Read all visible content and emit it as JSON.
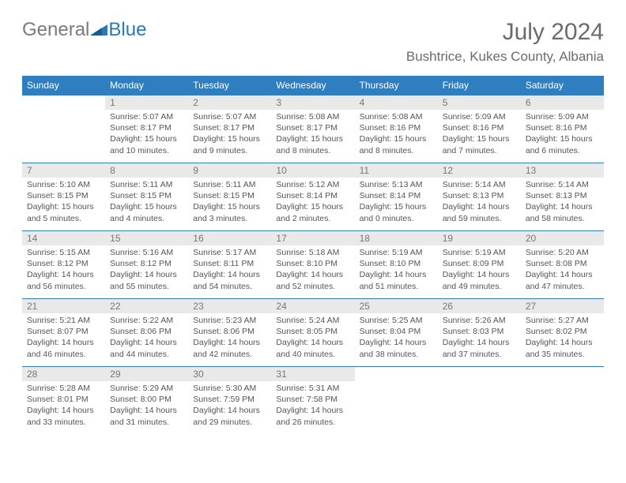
{
  "logo": {
    "part1": "General",
    "part2": "Blue"
  },
  "title": "July 2024",
  "location": "Bushtrice, Kukes County, Albania",
  "colors": {
    "header_bg": "#2f7ec0",
    "header_text": "#ffffff",
    "daynum_bg": "#e9e9e9",
    "cell_border": "#2f7ec0",
    "text": "#555555",
    "logo_gray": "#7a7a7a",
    "logo_blue": "#2878bd"
  },
  "weekdays": [
    "Sunday",
    "Monday",
    "Tuesday",
    "Wednesday",
    "Thursday",
    "Friday",
    "Saturday"
  ],
  "weeks": [
    [
      {
        "day": "",
        "sunrise": "",
        "sunset": "",
        "daylight": ""
      },
      {
        "day": "1",
        "sunrise": "Sunrise: 5:07 AM",
        "sunset": "Sunset: 8:17 PM",
        "daylight": "Daylight: 15 hours and 10 minutes."
      },
      {
        "day": "2",
        "sunrise": "Sunrise: 5:07 AM",
        "sunset": "Sunset: 8:17 PM",
        "daylight": "Daylight: 15 hours and 9 minutes."
      },
      {
        "day": "3",
        "sunrise": "Sunrise: 5:08 AM",
        "sunset": "Sunset: 8:17 PM",
        "daylight": "Daylight: 15 hours and 8 minutes."
      },
      {
        "day": "4",
        "sunrise": "Sunrise: 5:08 AM",
        "sunset": "Sunset: 8:16 PM",
        "daylight": "Daylight: 15 hours and 8 minutes."
      },
      {
        "day": "5",
        "sunrise": "Sunrise: 5:09 AM",
        "sunset": "Sunset: 8:16 PM",
        "daylight": "Daylight: 15 hours and 7 minutes."
      },
      {
        "day": "6",
        "sunrise": "Sunrise: 5:09 AM",
        "sunset": "Sunset: 8:16 PM",
        "daylight": "Daylight: 15 hours and 6 minutes."
      }
    ],
    [
      {
        "day": "7",
        "sunrise": "Sunrise: 5:10 AM",
        "sunset": "Sunset: 8:15 PM",
        "daylight": "Daylight: 15 hours and 5 minutes."
      },
      {
        "day": "8",
        "sunrise": "Sunrise: 5:11 AM",
        "sunset": "Sunset: 8:15 PM",
        "daylight": "Daylight: 15 hours and 4 minutes."
      },
      {
        "day": "9",
        "sunrise": "Sunrise: 5:11 AM",
        "sunset": "Sunset: 8:15 PM",
        "daylight": "Daylight: 15 hours and 3 minutes."
      },
      {
        "day": "10",
        "sunrise": "Sunrise: 5:12 AM",
        "sunset": "Sunset: 8:14 PM",
        "daylight": "Daylight: 15 hours and 2 minutes."
      },
      {
        "day": "11",
        "sunrise": "Sunrise: 5:13 AM",
        "sunset": "Sunset: 8:14 PM",
        "daylight": "Daylight: 15 hours and 0 minutes."
      },
      {
        "day": "12",
        "sunrise": "Sunrise: 5:14 AM",
        "sunset": "Sunset: 8:13 PM",
        "daylight": "Daylight: 14 hours and 59 minutes."
      },
      {
        "day": "13",
        "sunrise": "Sunrise: 5:14 AM",
        "sunset": "Sunset: 8:13 PM",
        "daylight": "Daylight: 14 hours and 58 minutes."
      }
    ],
    [
      {
        "day": "14",
        "sunrise": "Sunrise: 5:15 AM",
        "sunset": "Sunset: 8:12 PM",
        "daylight": "Daylight: 14 hours and 56 minutes."
      },
      {
        "day": "15",
        "sunrise": "Sunrise: 5:16 AM",
        "sunset": "Sunset: 8:12 PM",
        "daylight": "Daylight: 14 hours and 55 minutes."
      },
      {
        "day": "16",
        "sunrise": "Sunrise: 5:17 AM",
        "sunset": "Sunset: 8:11 PM",
        "daylight": "Daylight: 14 hours and 54 minutes."
      },
      {
        "day": "17",
        "sunrise": "Sunrise: 5:18 AM",
        "sunset": "Sunset: 8:10 PM",
        "daylight": "Daylight: 14 hours and 52 minutes."
      },
      {
        "day": "18",
        "sunrise": "Sunrise: 5:19 AM",
        "sunset": "Sunset: 8:10 PM",
        "daylight": "Daylight: 14 hours and 51 minutes."
      },
      {
        "day": "19",
        "sunrise": "Sunrise: 5:19 AM",
        "sunset": "Sunset: 8:09 PM",
        "daylight": "Daylight: 14 hours and 49 minutes."
      },
      {
        "day": "20",
        "sunrise": "Sunrise: 5:20 AM",
        "sunset": "Sunset: 8:08 PM",
        "daylight": "Daylight: 14 hours and 47 minutes."
      }
    ],
    [
      {
        "day": "21",
        "sunrise": "Sunrise: 5:21 AM",
        "sunset": "Sunset: 8:07 PM",
        "daylight": "Daylight: 14 hours and 46 minutes."
      },
      {
        "day": "22",
        "sunrise": "Sunrise: 5:22 AM",
        "sunset": "Sunset: 8:06 PM",
        "daylight": "Daylight: 14 hours and 44 minutes."
      },
      {
        "day": "23",
        "sunrise": "Sunrise: 5:23 AM",
        "sunset": "Sunset: 8:06 PM",
        "daylight": "Daylight: 14 hours and 42 minutes."
      },
      {
        "day": "24",
        "sunrise": "Sunrise: 5:24 AM",
        "sunset": "Sunset: 8:05 PM",
        "daylight": "Daylight: 14 hours and 40 minutes."
      },
      {
        "day": "25",
        "sunrise": "Sunrise: 5:25 AM",
        "sunset": "Sunset: 8:04 PM",
        "daylight": "Daylight: 14 hours and 38 minutes."
      },
      {
        "day": "26",
        "sunrise": "Sunrise: 5:26 AM",
        "sunset": "Sunset: 8:03 PM",
        "daylight": "Daylight: 14 hours and 37 minutes."
      },
      {
        "day": "27",
        "sunrise": "Sunrise: 5:27 AM",
        "sunset": "Sunset: 8:02 PM",
        "daylight": "Daylight: 14 hours and 35 minutes."
      }
    ],
    [
      {
        "day": "28",
        "sunrise": "Sunrise: 5:28 AM",
        "sunset": "Sunset: 8:01 PM",
        "daylight": "Daylight: 14 hours and 33 minutes."
      },
      {
        "day": "29",
        "sunrise": "Sunrise: 5:29 AM",
        "sunset": "Sunset: 8:00 PM",
        "daylight": "Daylight: 14 hours and 31 minutes."
      },
      {
        "day": "30",
        "sunrise": "Sunrise: 5:30 AM",
        "sunset": "Sunset: 7:59 PM",
        "daylight": "Daylight: 14 hours and 29 minutes."
      },
      {
        "day": "31",
        "sunrise": "Sunrise: 5:31 AM",
        "sunset": "Sunset: 7:58 PM",
        "daylight": "Daylight: 14 hours and 26 minutes."
      },
      {
        "day": "",
        "sunrise": "",
        "sunset": "",
        "daylight": ""
      },
      {
        "day": "",
        "sunrise": "",
        "sunset": "",
        "daylight": ""
      },
      {
        "day": "",
        "sunrise": "",
        "sunset": "",
        "daylight": ""
      }
    ]
  ]
}
